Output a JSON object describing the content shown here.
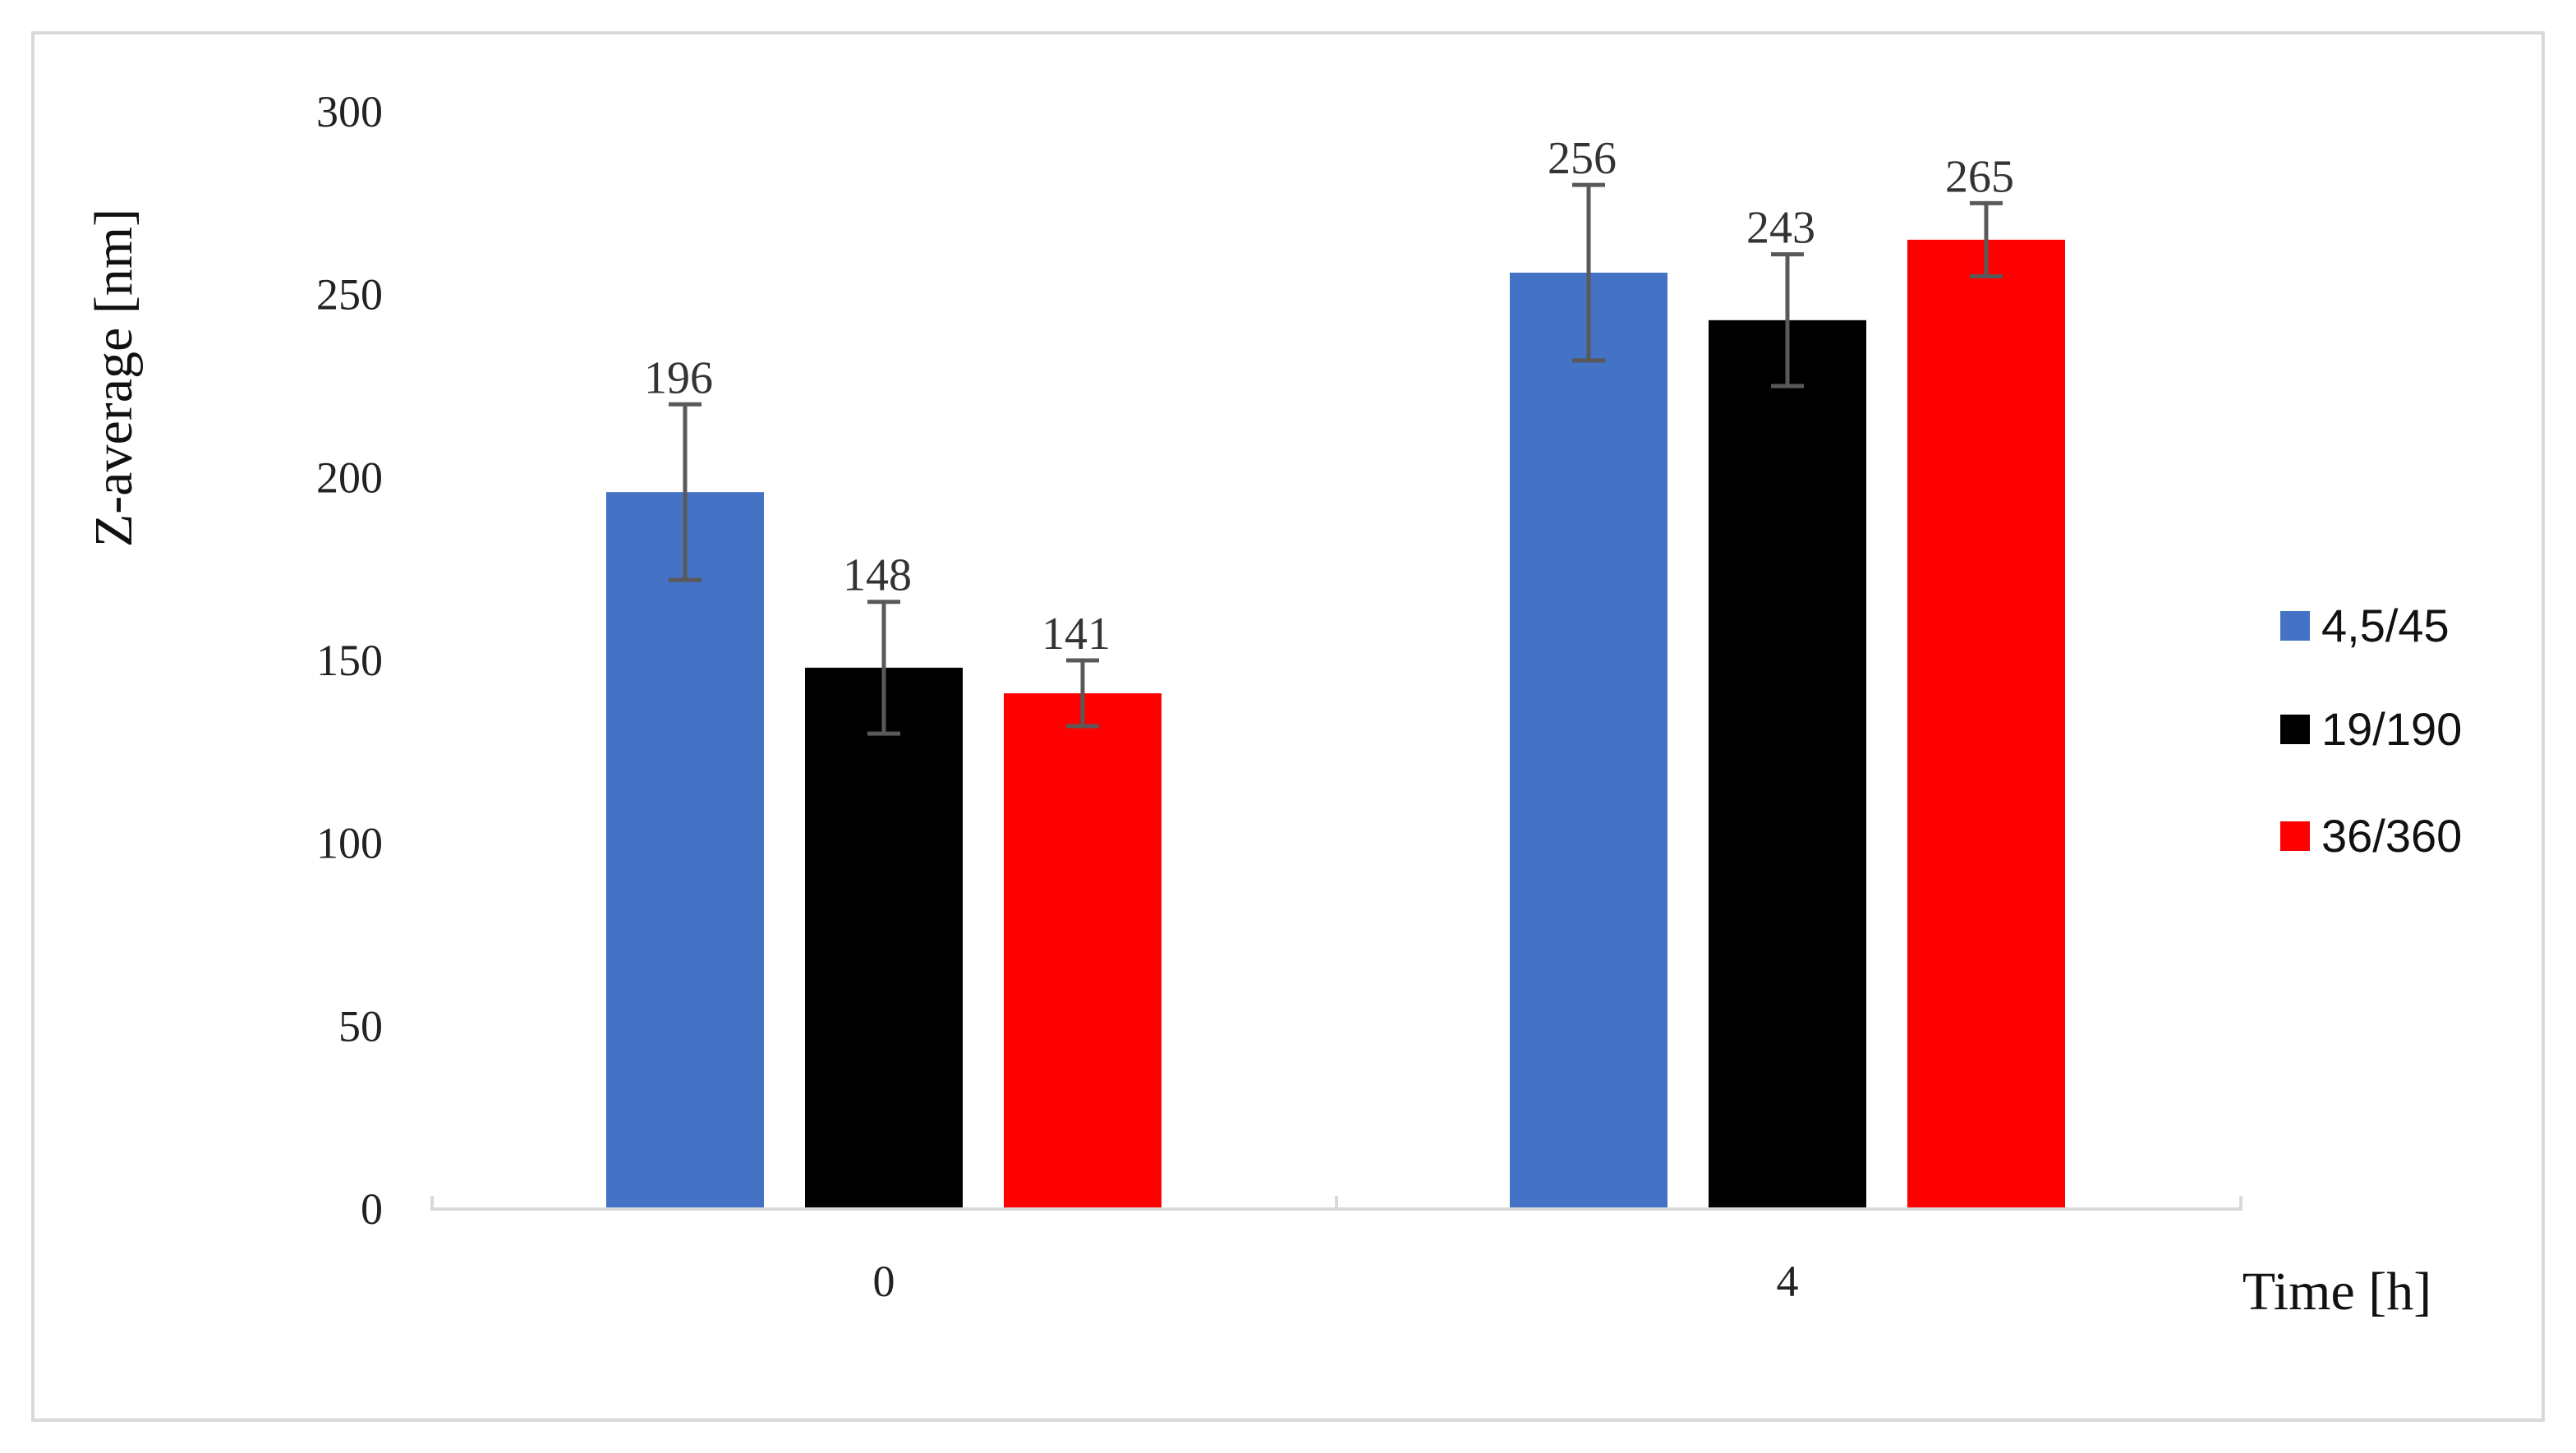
{
  "chart_data": {
    "type": "bar",
    "title": "",
    "xlabel": "Time [h]",
    "ylabel": "Z-average [nm]",
    "ylim": [
      0,
      300
    ],
    "yticks": [
      0,
      50,
      100,
      150,
      200,
      250,
      300
    ],
    "categories": [
      "0",
      "4"
    ],
    "series": [
      {
        "name": "4,5/45",
        "color": "#4472c4",
        "values": [
          196,
          256
        ],
        "errors": [
          24,
          24
        ],
        "labels": [
          "196",
          "256"
        ]
      },
      {
        "name": "19/190",
        "color": "#000000",
        "values": [
          148,
          243
        ],
        "errors": [
          18,
          18
        ],
        "labels": [
          "148",
          "243"
        ]
      },
      {
        "name": "36/360",
        "color": "#ff0000",
        "values": [
          141,
          265
        ],
        "errors": [
          9,
          10
        ],
        "labels": [
          "141",
          "265"
        ]
      }
    ],
    "grid": false,
    "legend_position": "right",
    "error_bar_color": "#595959",
    "axis_color": "#d9d9d9"
  }
}
